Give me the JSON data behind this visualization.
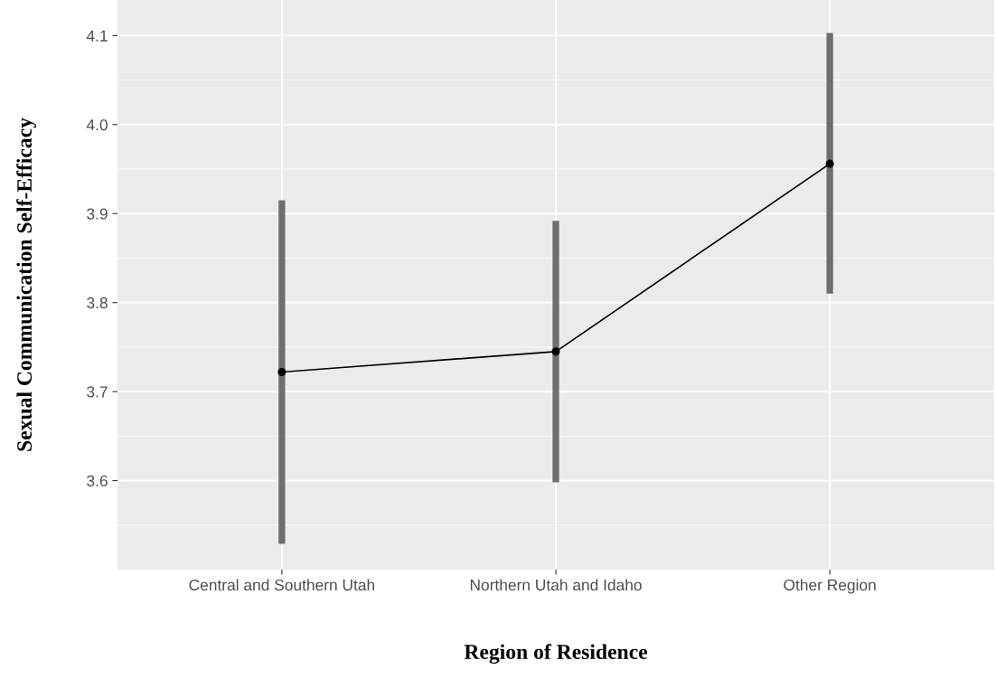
{
  "chart_data": {
    "type": "line",
    "xlabel": "Region of Residence",
    "ylabel": "Sexual Communication Self-Efficacy",
    "categories": [
      "Central and Southern Utah",
      "Northern Utah and Idaho",
      "Other Region"
    ],
    "series": [
      {
        "type": "bar",
        "color": "#6e6e6e",
        "base": [
          3.529,
          3.598,
          3.81
        ],
        "values": [
          0.386,
          0.294,
          0.293
        ]
      },
      {
        "color": "#000000",
        "values": [
          3.722,
          3.745,
          3.956
        ]
      }
    ],
    "ylim": [
      3.5,
      4.14
    ],
    "yticks": [
      3.6,
      3.7,
      3.8,
      3.9,
      {
        "value": 4.0,
        "label": "4.0"
      },
      4.1
    ],
    "grid": true,
    "marker": "circle",
    "line_style": "solid"
  }
}
